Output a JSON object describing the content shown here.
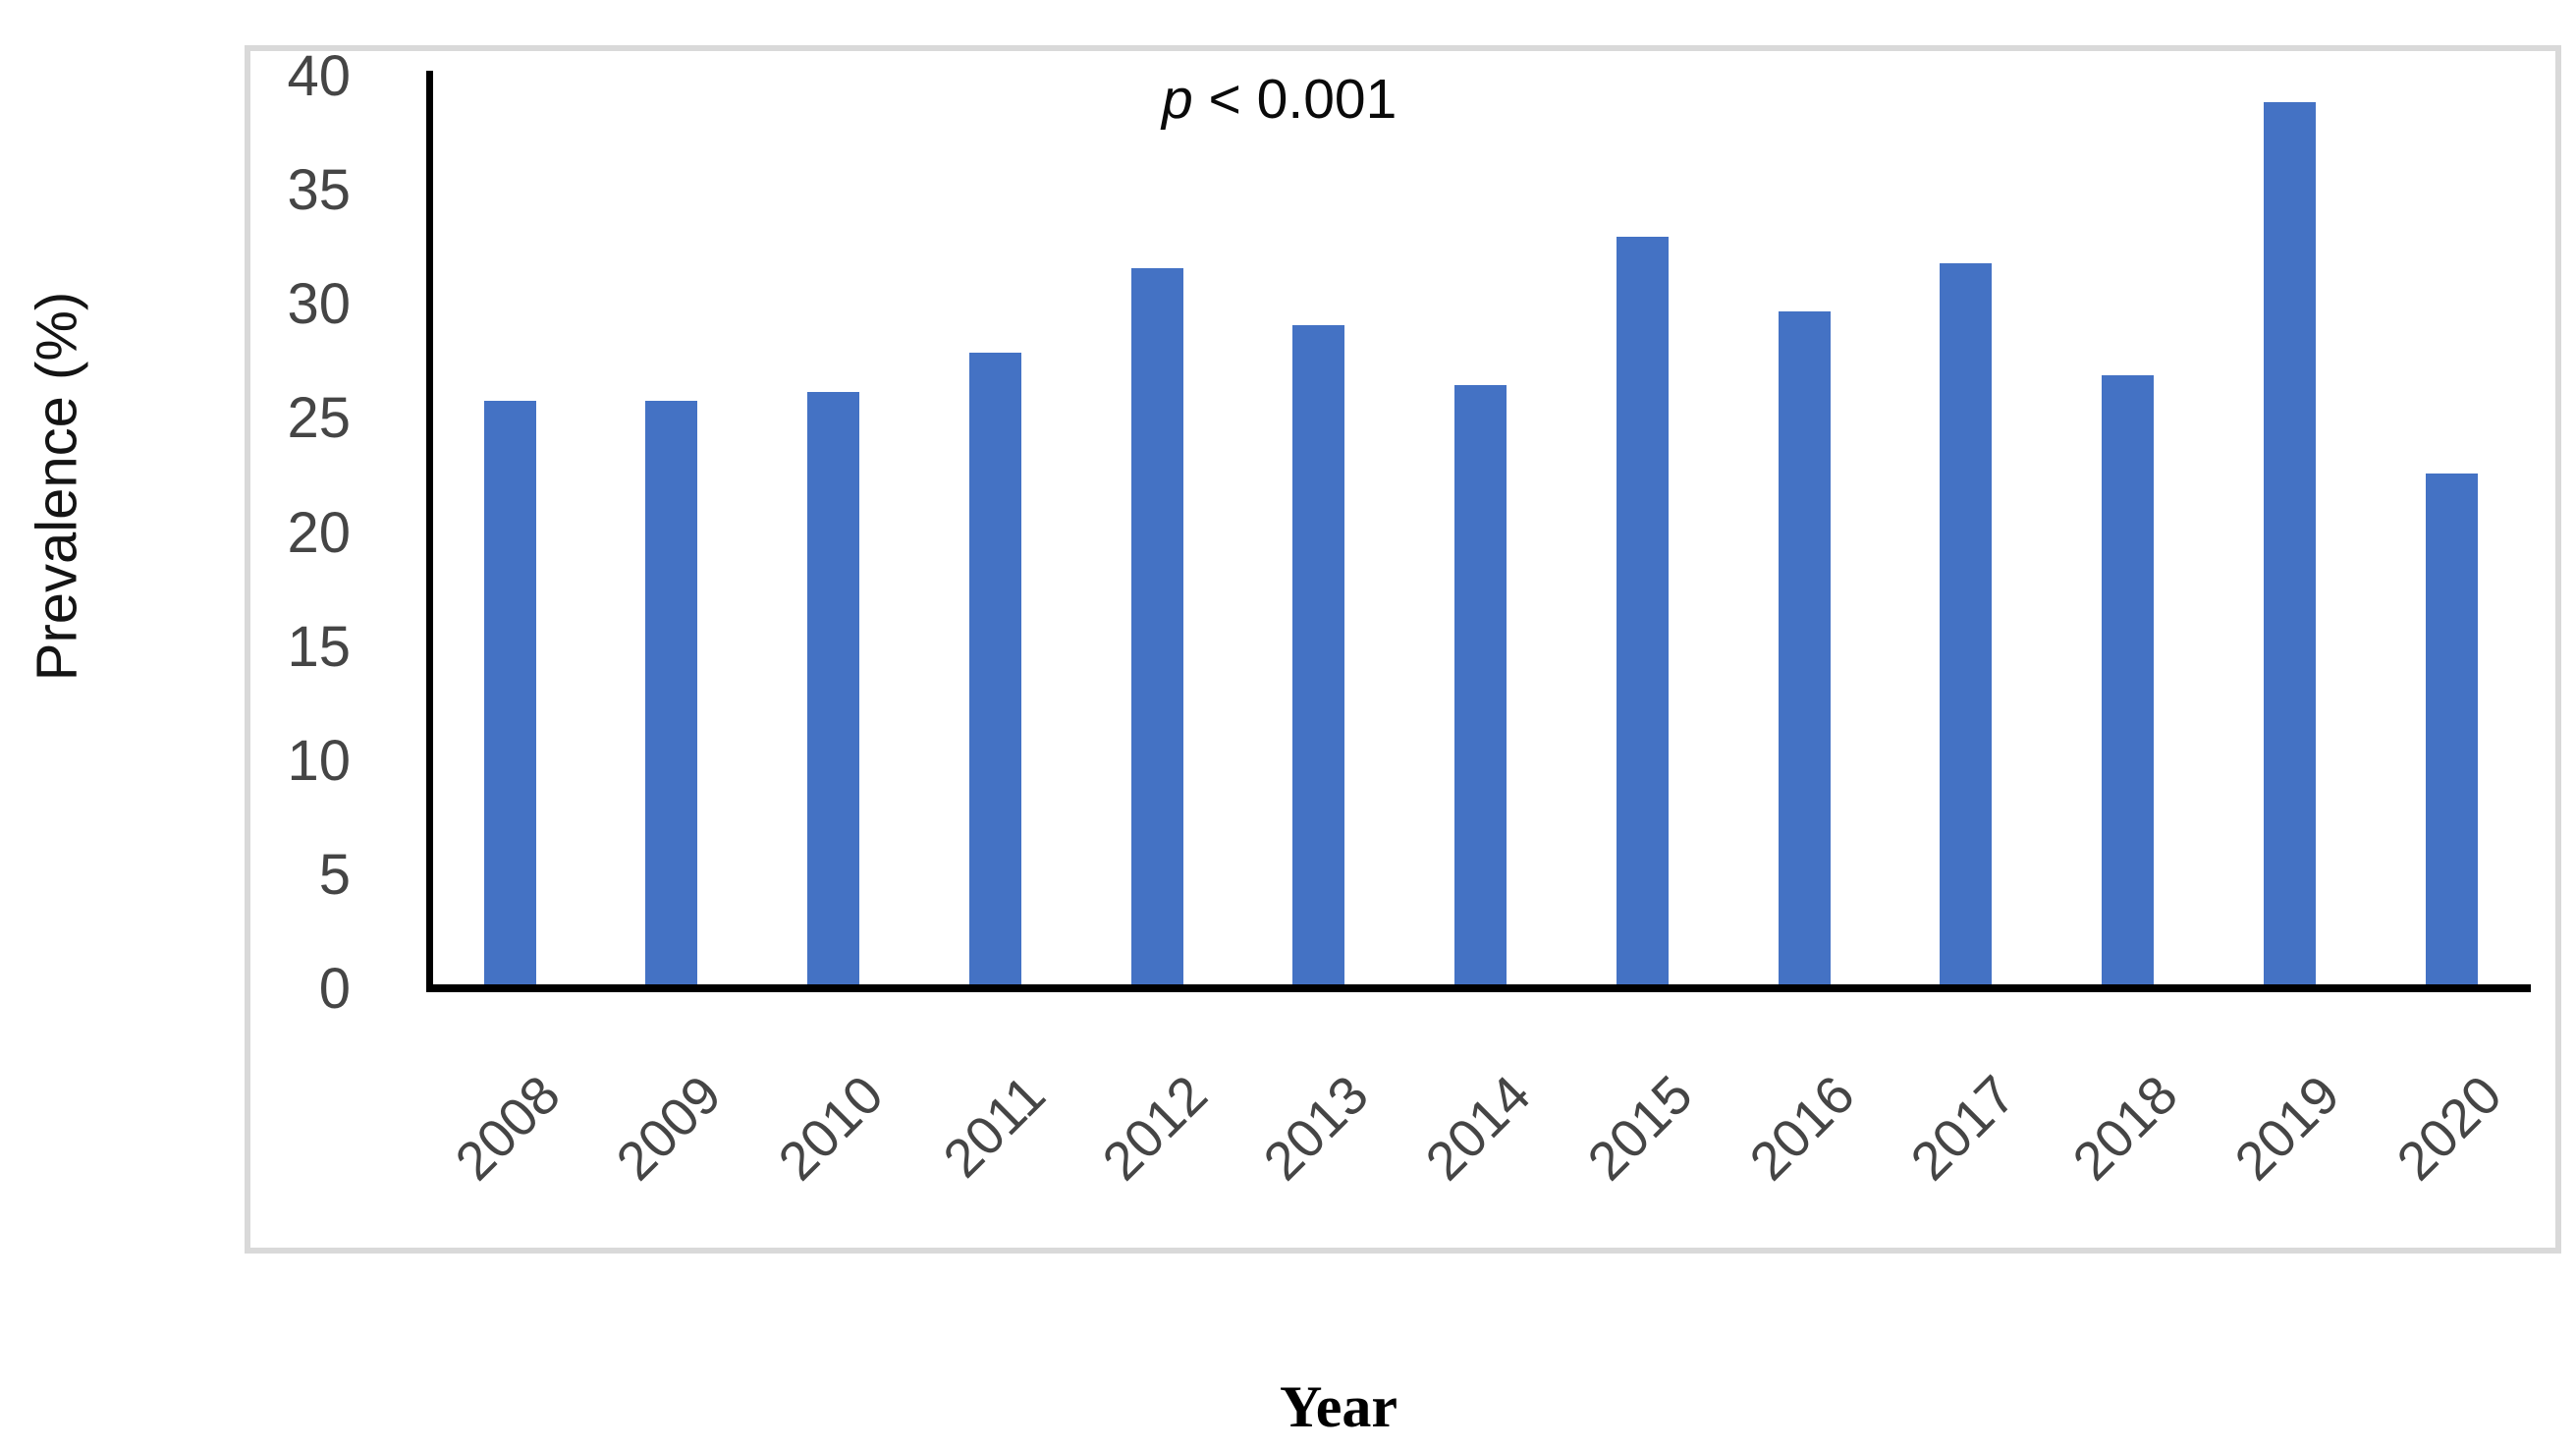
{
  "chart_data": {
    "type": "bar",
    "title": "",
    "categories": [
      "2008",
      "2009",
      "2010",
      "2011",
      "2012",
      "2013",
      "2014",
      "2015",
      "2016",
      "2017",
      "2018",
      "2019",
      "2020"
    ],
    "values": [
      25.8,
      25.8,
      26.2,
      27.9,
      31.6,
      29.1,
      26.5,
      33.0,
      29.7,
      31.8,
      26.9,
      38.9,
      22.6
    ],
    "xlabel": "Year",
    "ylabel": "Prevalence (%)",
    "ylim": [
      0,
      40
    ],
    "yticks": [
      0,
      5,
      10,
      15,
      20,
      25,
      30,
      35,
      40
    ],
    "grid": false,
    "legend": "none",
    "bar_color": "#4472C4",
    "annotation": {
      "symbol": "p",
      "rest": " < 0.001"
    }
  },
  "frame_color": "#d9d9d9",
  "axis_color": "#000000",
  "tick_label_color": "#454545"
}
